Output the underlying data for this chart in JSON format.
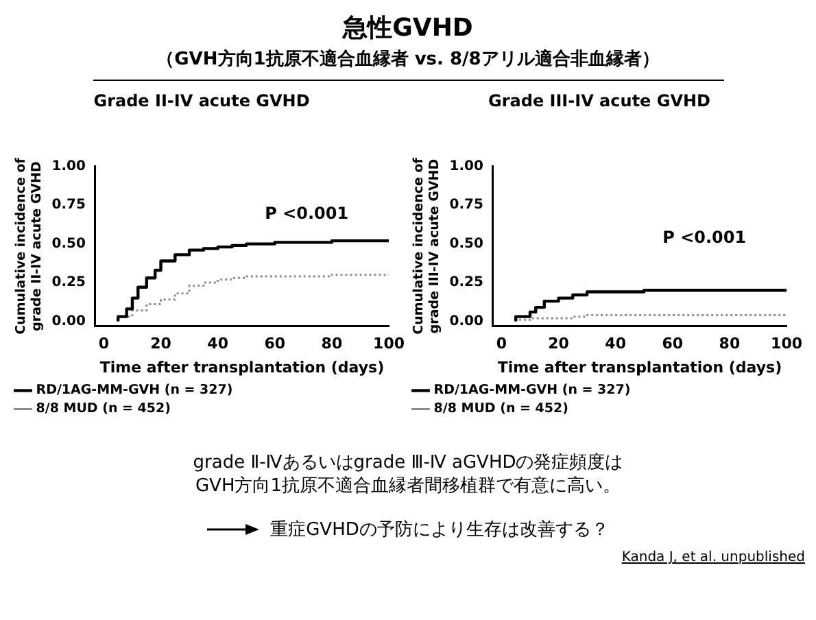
{
  "chart_data": [
    {
      "type": "other",
      "title": "急性GVHD",
      "subtitle": "（GVH方向1抗原不適合血縁者 vs. 8/8アリル適合非血縁者）"
    },
    {
      "type": "step",
      "title": "Grade II-IV acute GVHD",
      "xlabel": "Time after transplantation (days)",
      "ylabel": "Cumulative incidence of\ngrade II-IV acute GVHD",
      "xlim": [
        -3,
        100
      ],
      "xticks": [
        0,
        20,
        40,
        60,
        80,
        100
      ],
      "ylim": [
        -0.03,
        1
      ],
      "yticks": [
        {
          "value": 0,
          "label": "0.00"
        },
        {
          "value": 0.25,
          "label": "0.25"
        },
        {
          "value": 0.5,
          "label": "0.50"
        },
        {
          "value": 0.75,
          "label": "0.75"
        },
        {
          "value": 1,
          "label": "1.00"
        }
      ],
      "grid": false,
      "legend": "bottom",
      "marker": "none",
      "annotations": [
        "P <0.001"
      ],
      "series": [
        {
          "name": "RD/1AG-MM-GVH (n = 327)",
          "color": "#000000",
          "line_style": "solid",
          "x": [
            5,
            8,
            10,
            12,
            15,
            18,
            20,
            25,
            30,
            35,
            40,
            45,
            50,
            60,
            70,
            80,
            90,
            100
          ],
          "values": [
            0,
            0.03,
            0.08,
            0.15,
            0.22,
            0.28,
            0.33,
            0.39,
            0.43,
            0.46,
            0.47,
            0.48,
            0.49,
            0.5,
            0.51,
            0.51,
            0.52,
            0.52
          ]
        },
        {
          "name": "8/8 MUD (n = 452)",
          "color": "#8c8c8c",
          "line_style": "dotted",
          "x": [
            5,
            10,
            15,
            20,
            25,
            30,
            35,
            40,
            45,
            50,
            60,
            80,
            100
          ],
          "values": [
            0,
            0.03,
            0.07,
            0.11,
            0.14,
            0.18,
            0.23,
            0.25,
            0.27,
            0.28,
            0.29,
            0.29,
            0.3
          ]
        }
      ]
    },
    {
      "type": "step",
      "title": "Grade III-IV acute GVHD",
      "xlabel": "Time after transplantation (days)",
      "ylabel": "Cumulative incidence of\ngrade III-IV acute GVHD",
      "xlim": [
        -3,
        100
      ],
      "xticks": [
        0,
        20,
        40,
        60,
        80,
        100
      ],
      "ylim": [
        -0.03,
        1
      ],
      "yticks": [
        {
          "value": 0,
          "label": "0.00"
        },
        {
          "value": 0.25,
          "label": "0.25"
        },
        {
          "value": 0.5,
          "label": "0.50"
        },
        {
          "value": 0.75,
          "label": "0.75"
        },
        {
          "value": 1,
          "label": "1.00"
        }
      ],
      "grid": false,
      "legend": "bottom",
      "marker": "none",
      "annotations": [
        "P <0.001"
      ],
      "series": [
        {
          "name": "RD/1AG-MM-GVH (n = 327)",
          "color": "#000000",
          "line_style": "solid",
          "x": [
            5,
            10,
            12,
            15,
            20,
            25,
            30,
            40,
            50,
            70,
            100
          ],
          "values": [
            0,
            0.03,
            0.06,
            0.09,
            0.13,
            0.15,
            0.17,
            0.19,
            0.19,
            0.2,
            0.2
          ]
        },
        {
          "name": "8/8 MUD (n = 452)",
          "color": "#8c8c8c",
          "line_style": "dotted",
          "x": [
            5,
            9,
            10,
            25,
            30,
            35,
            45,
            100
          ],
          "values": [
            0,
            0.01,
            0.01,
            0.02,
            0.03,
            0.04,
            0.04,
            0.04
          ]
        }
      ]
    },
    {
      "type": "other",
      "annotations": [
        "grade Ⅱ-Ⅳあるいはgrade Ⅲ-Ⅳ aGVHDの発症頻度は",
        "GVH方向1抗原不適合血縁者間移植群で有意に高い。",
        "重症GVHDの予防により生存は改善する？",
        "Kanda J, et al. unpublished"
      ]
    }
  ]
}
